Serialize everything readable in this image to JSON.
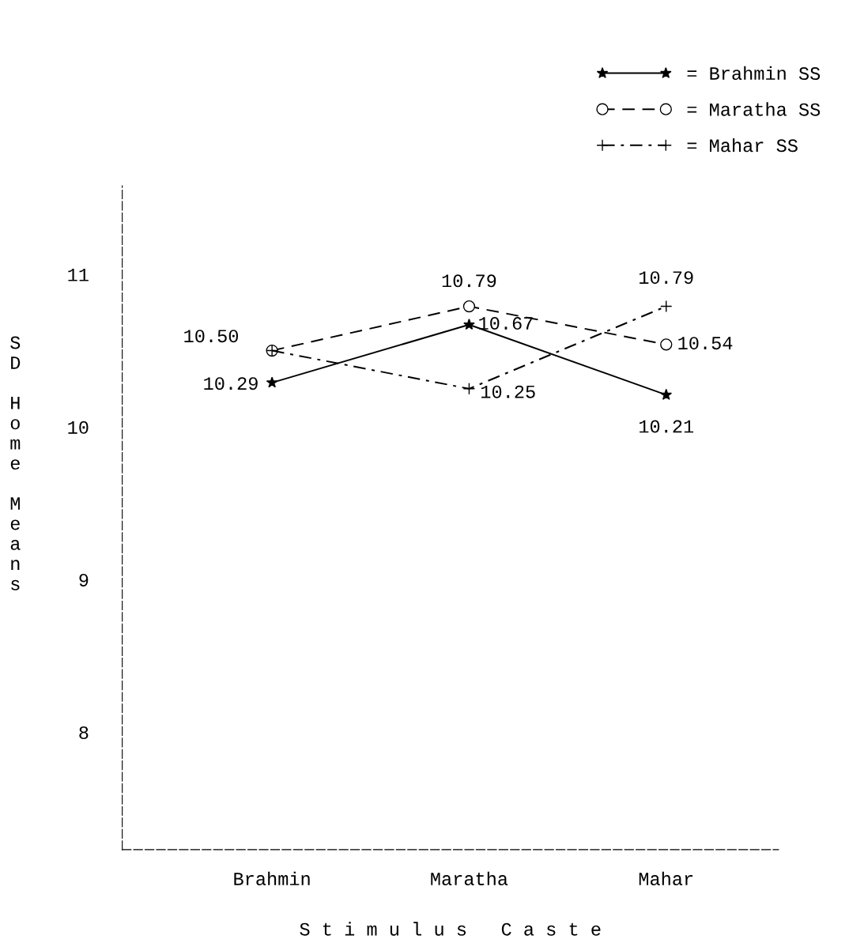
{
  "chart_data": {
    "type": "line",
    "xlabel": "S t i m u l u s   C a s t e",
    "ylabel": "SD Home Means",
    "categories": [
      "Brahmin",
      "Maratha",
      "Mahar"
    ],
    "series": [
      {
        "name": "= Brahmin SS",
        "color": "#000000",
        "values": [
          10.29,
          10.67,
          10.21
        ],
        "marker": "star",
        "line_style": "solid",
        "value_labels": [
          "10.29",
          "10.67",
          "10.21"
        ]
      },
      {
        "name": "= Maratha SS",
        "color": "#000000",
        "values": [
          10.5,
          10.79,
          10.54
        ],
        "marker": "circle",
        "line_style": "dashed",
        "value_labels": [
          "10.50",
          "10.79",
          "10.54"
        ]
      },
      {
        "name": "= Mahar SS",
        "color": "#000000",
        "values": [
          10.5,
          10.25,
          10.79
        ],
        "marker": "cross",
        "line_style": "dashdot",
        "value_labels": [
          null,
          "10.25",
          "10.79"
        ]
      }
    ],
    "ylim": [
      7.23,
      11.58
    ],
    "yticks": [
      8,
      9,
      10,
      11
    ],
    "grid": false,
    "legend": "top right"
  }
}
